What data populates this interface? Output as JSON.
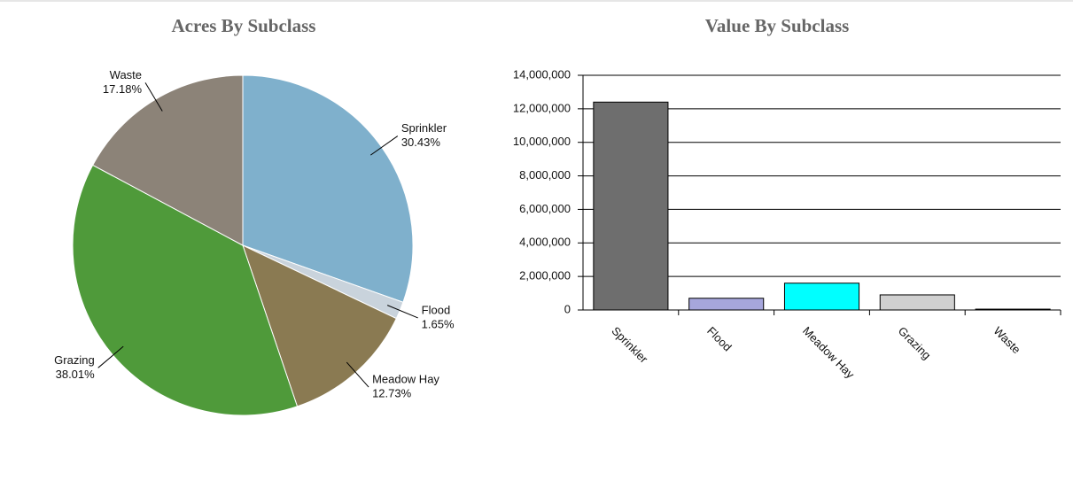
{
  "chart_data": [
    {
      "type": "pie",
      "title": "Acres By Subclass",
      "categories": [
        "Sprinkler",
        "Flood",
        "Meadow Hay",
        "Grazing",
        "Waste"
      ],
      "values": [
        30.43,
        1.65,
        12.73,
        38.01,
        17.18
      ],
      "value_labels": [
        "30.43%",
        "1.65%",
        "12.73%",
        "38.01%",
        "17.18%"
      ],
      "colors": [
        "#7fb0cc",
        "#c9d3dc",
        "#8a7a52",
        "#4f9a3a",
        "#8c8378"
      ]
    },
    {
      "type": "bar",
      "title": "Value By Subclass",
      "categories": [
        "Sprinkler",
        "Flood",
        "Meadow Hay",
        "Grazing",
        "Waste"
      ],
      "values": [
        12400000,
        700000,
        1600000,
        900000,
        50000
      ],
      "colors": [
        "#6e6e6e",
        "#a6a6dc",
        "#00ffff",
        "#d0d0d0",
        "#222222"
      ],
      "ylim": [
        0,
        14000000
      ],
      "yticks": [
        0,
        {
          "value": 2000000,
          "label": "2,000,000"
        },
        {
          "value": 4000000,
          "label": "4,000,000"
        },
        {
          "value": 6000000,
          "label": "6,000,000"
        },
        {
          "value": 8000000,
          "label": "8,000,000"
        },
        {
          "value": 10000000,
          "label": "10,000,000"
        },
        {
          "value": 12000000,
          "label": "12,000,000"
        },
        {
          "value": 14000000,
          "label": "14,000,000"
        }
      ],
      "grid": true
    }
  ]
}
